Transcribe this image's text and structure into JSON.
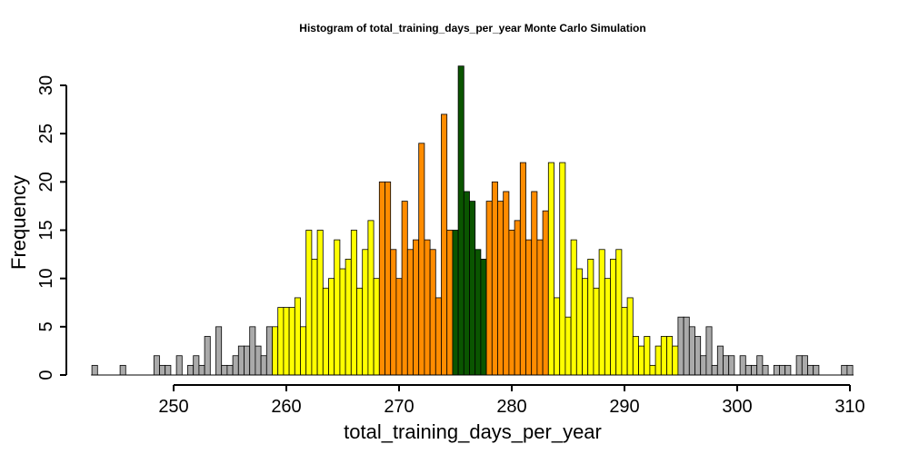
{
  "chart_data": {
    "type": "bar",
    "title": "Histogram of  total_training_days_per_year  Monte Carlo Simulation",
    "xlabel": "total_training_days_per_year",
    "ylabel": "Frequency",
    "xlim": [
      243,
      310
    ],
    "ylim": [
      0,
      32
    ],
    "x_ticks": [
      250,
      260,
      270,
      280,
      290,
      300,
      310
    ],
    "y_ticks": [
      0,
      5,
      10,
      15,
      20,
      25,
      30
    ],
    "bin_width": 0.5,
    "grid": false,
    "legend": "none",
    "colors": {
      "tail": "#aaaaaa",
      "outer": "#ffff00",
      "inner": "#ff8c00",
      "center": "#0a5500",
      "edge": "#000000"
    },
    "bins": [
      {
        "x": 243.0,
        "count": 1,
        "band": "tail"
      },
      {
        "x": 245.5,
        "count": 1,
        "band": "tail"
      },
      {
        "x": 248.5,
        "count": 2,
        "band": "tail"
      },
      {
        "x": 249.0,
        "count": 1,
        "band": "tail"
      },
      {
        "x": 249.5,
        "count": 1,
        "band": "tail"
      },
      {
        "x": 250.5,
        "count": 2,
        "band": "tail"
      },
      {
        "x": 251.5,
        "count": 1,
        "band": "tail"
      },
      {
        "x": 252.0,
        "count": 2,
        "band": "tail"
      },
      {
        "x": 252.5,
        "count": 1,
        "band": "tail"
      },
      {
        "x": 253.0,
        "count": 4,
        "band": "tail"
      },
      {
        "x": 254.0,
        "count": 5,
        "band": "tail"
      },
      {
        "x": 254.5,
        "count": 1,
        "band": "tail"
      },
      {
        "x": 255.0,
        "count": 1,
        "band": "tail"
      },
      {
        "x": 255.5,
        "count": 2,
        "band": "tail"
      },
      {
        "x": 256.0,
        "count": 3,
        "band": "tail"
      },
      {
        "x": 256.5,
        "count": 3,
        "band": "tail"
      },
      {
        "x": 257.0,
        "count": 5,
        "band": "tail"
      },
      {
        "x": 257.5,
        "count": 3,
        "band": "tail"
      },
      {
        "x": 258.0,
        "count": 2,
        "band": "tail"
      },
      {
        "x": 258.5,
        "count": 5,
        "band": "tail"
      },
      {
        "x": 259.0,
        "count": 5,
        "band": "outer"
      },
      {
        "x": 259.5,
        "count": 7,
        "band": "outer"
      },
      {
        "x": 260.0,
        "count": 7,
        "band": "outer"
      },
      {
        "x": 260.5,
        "count": 7,
        "band": "outer"
      },
      {
        "x": 261.0,
        "count": 8,
        "band": "outer"
      },
      {
        "x": 261.5,
        "count": 5,
        "band": "outer"
      },
      {
        "x": 262.0,
        "count": 15,
        "band": "outer"
      },
      {
        "x": 262.5,
        "count": 12,
        "band": "outer"
      },
      {
        "x": 263.0,
        "count": 15,
        "band": "outer"
      },
      {
        "x": 263.5,
        "count": 9,
        "band": "outer"
      },
      {
        "x": 264.0,
        "count": 10,
        "band": "outer"
      },
      {
        "x": 264.5,
        "count": 14,
        "band": "outer"
      },
      {
        "x": 265.0,
        "count": 11,
        "band": "outer"
      },
      {
        "x": 265.5,
        "count": 12,
        "band": "outer"
      },
      {
        "x": 266.0,
        "count": 15,
        "band": "outer"
      },
      {
        "x": 266.5,
        "count": 9,
        "band": "outer"
      },
      {
        "x": 267.0,
        "count": 13,
        "band": "outer"
      },
      {
        "x": 267.5,
        "count": 16,
        "band": "outer"
      },
      {
        "x": 268.0,
        "count": 10,
        "band": "outer"
      },
      {
        "x": 268.5,
        "count": 20,
        "band": "inner"
      },
      {
        "x": 269.0,
        "count": 20,
        "band": "inner"
      },
      {
        "x": 269.5,
        "count": 13,
        "band": "inner"
      },
      {
        "x": 270.0,
        "count": 10,
        "band": "inner"
      },
      {
        "x": 270.5,
        "count": 18,
        "band": "inner"
      },
      {
        "x": 271.0,
        "count": 13,
        "band": "inner"
      },
      {
        "x": 271.5,
        "count": 14,
        "band": "inner"
      },
      {
        "x": 272.0,
        "count": 24,
        "band": "inner"
      },
      {
        "x": 272.5,
        "count": 14,
        "band": "inner"
      },
      {
        "x": 273.0,
        "count": 13,
        "band": "inner"
      },
      {
        "x": 273.5,
        "count": 8,
        "band": "inner"
      },
      {
        "x": 274.0,
        "count": 27,
        "band": "inner"
      },
      {
        "x": 274.5,
        "count": 15,
        "band": "inner"
      },
      {
        "x": 275.0,
        "count": 15,
        "band": "center"
      },
      {
        "x": 275.5,
        "count": 32,
        "band": "center"
      },
      {
        "x": 276.0,
        "count": 19,
        "band": "center"
      },
      {
        "x": 276.5,
        "count": 18,
        "band": "center"
      },
      {
        "x": 277.0,
        "count": 13,
        "band": "center"
      },
      {
        "x": 277.5,
        "count": 12,
        "band": "center"
      },
      {
        "x": 278.0,
        "count": 18,
        "band": "inner"
      },
      {
        "x": 278.5,
        "count": 20,
        "band": "inner"
      },
      {
        "x": 279.0,
        "count": 18,
        "band": "inner"
      },
      {
        "x": 279.5,
        "count": 19,
        "band": "inner"
      },
      {
        "x": 280.0,
        "count": 15,
        "band": "inner"
      },
      {
        "x": 280.5,
        "count": 16,
        "band": "inner"
      },
      {
        "x": 281.0,
        "count": 22,
        "band": "inner"
      },
      {
        "x": 281.5,
        "count": 14,
        "band": "inner"
      },
      {
        "x": 282.0,
        "count": 19,
        "band": "inner"
      },
      {
        "x": 282.5,
        "count": 14,
        "band": "inner"
      },
      {
        "x": 283.0,
        "count": 17,
        "band": "inner"
      },
      {
        "x": 283.5,
        "count": 22,
        "band": "outer"
      },
      {
        "x": 284.0,
        "count": 8,
        "band": "outer"
      },
      {
        "x": 284.5,
        "count": 22,
        "band": "outer"
      },
      {
        "x": 285.0,
        "count": 6,
        "band": "outer"
      },
      {
        "x": 285.5,
        "count": 14,
        "band": "outer"
      },
      {
        "x": 286.0,
        "count": 11,
        "band": "outer"
      },
      {
        "x": 286.5,
        "count": 10,
        "band": "outer"
      },
      {
        "x": 287.0,
        "count": 12,
        "band": "outer"
      },
      {
        "x": 287.5,
        "count": 9,
        "band": "outer"
      },
      {
        "x": 288.0,
        "count": 13,
        "band": "outer"
      },
      {
        "x": 288.5,
        "count": 10,
        "band": "outer"
      },
      {
        "x": 289.0,
        "count": 12,
        "band": "outer"
      },
      {
        "x": 289.5,
        "count": 13,
        "band": "outer"
      },
      {
        "x": 290.0,
        "count": 7,
        "band": "outer"
      },
      {
        "x": 290.5,
        "count": 8,
        "band": "outer"
      },
      {
        "x": 291.0,
        "count": 4,
        "band": "outer"
      },
      {
        "x": 291.5,
        "count": 3,
        "band": "outer"
      },
      {
        "x": 292.0,
        "count": 4,
        "band": "outer"
      },
      {
        "x": 292.5,
        "count": 1,
        "band": "outer"
      },
      {
        "x": 293.0,
        "count": 3,
        "band": "outer"
      },
      {
        "x": 293.5,
        "count": 4,
        "band": "outer"
      },
      {
        "x": 294.0,
        "count": 4,
        "band": "outer"
      },
      {
        "x": 294.5,
        "count": 3,
        "band": "outer"
      },
      {
        "x": 295.0,
        "count": 6,
        "band": "tail"
      },
      {
        "x": 295.5,
        "count": 6,
        "band": "tail"
      },
      {
        "x": 296.0,
        "count": 5,
        "band": "tail"
      },
      {
        "x": 296.5,
        "count": 4,
        "band": "tail"
      },
      {
        "x": 297.0,
        "count": 2,
        "band": "tail"
      },
      {
        "x": 297.5,
        "count": 5,
        "band": "tail"
      },
      {
        "x": 298.0,
        "count": 1,
        "band": "tail"
      },
      {
        "x": 298.5,
        "count": 3,
        "band": "tail"
      },
      {
        "x": 299.0,
        "count": 2,
        "band": "tail"
      },
      {
        "x": 299.5,
        "count": 2,
        "band": "tail"
      },
      {
        "x": 300.5,
        "count": 2,
        "band": "tail"
      },
      {
        "x": 301.0,
        "count": 1,
        "band": "tail"
      },
      {
        "x": 301.5,
        "count": 1,
        "band": "tail"
      },
      {
        "x": 302.0,
        "count": 2,
        "band": "tail"
      },
      {
        "x": 302.5,
        "count": 1,
        "band": "tail"
      },
      {
        "x": 303.5,
        "count": 1,
        "band": "tail"
      },
      {
        "x": 304.0,
        "count": 1,
        "band": "tail"
      },
      {
        "x": 304.5,
        "count": 1,
        "band": "tail"
      },
      {
        "x": 305.5,
        "count": 2,
        "band": "tail"
      },
      {
        "x": 306.0,
        "count": 2,
        "band": "tail"
      },
      {
        "x": 306.5,
        "count": 1,
        "band": "tail"
      },
      {
        "x": 307.0,
        "count": 1,
        "band": "tail"
      },
      {
        "x": 309.5,
        "count": 1,
        "band": "tail"
      },
      {
        "x": 310.0,
        "count": 1,
        "band": "tail"
      }
    ]
  }
}
